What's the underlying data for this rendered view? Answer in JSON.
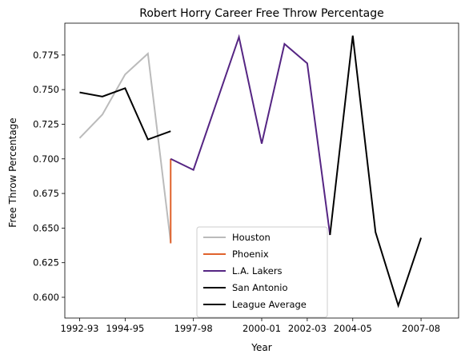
{
  "chart_data": {
    "type": "line",
    "title": "Robert Horry Career Free Throw Percentage",
    "xlabel": "Year",
    "ylabel": "Free Throw Percentage",
    "x_tick_labels": [
      "1992-93",
      "1994-95",
      "1997-98",
      "2000-01",
      "2002-03",
      "2004-05",
      "2007-08"
    ],
    "y_tick_labels": [
      "0.600",
      "0.625",
      "0.650",
      "0.675",
      "0.700",
      "0.725",
      "0.750",
      "0.775"
    ],
    "ylim": [
      0.585,
      0.798
    ],
    "legend_position": "lower-center",
    "series": [
      {
        "name": "Houston",
        "color": "#bbbbbb",
        "points": [
          {
            "x": "1992-93",
            "y": 0.715
          },
          {
            "x": "1993-94",
            "y": 0.732
          },
          {
            "x": "1994-95",
            "y": 0.761
          },
          {
            "x": "1995-96",
            "y": 0.776
          },
          {
            "x": "1996-97",
            "y": 0.64
          }
        ]
      },
      {
        "name": "Phoenix",
        "color": "#e0622c",
        "points": [
          {
            "x": "1996-97",
            "y": 0.639
          },
          {
            "x": "1996-97",
            "y": 0.7
          }
        ]
      },
      {
        "name": "L.A. Lakers",
        "color": "#552583",
        "points": [
          {
            "x": "1996-97",
            "y": 0.7
          },
          {
            "x": "1997-98",
            "y": 0.692
          },
          {
            "x": "1999-00",
            "y": 0.788
          },
          {
            "x": "2000-01",
            "y": 0.711
          },
          {
            "x": "2001-02",
            "y": 0.783
          },
          {
            "x": "2002-03",
            "y": 0.769
          },
          {
            "x": "2003-04",
            "y": 0.645
          }
        ]
      },
      {
        "name": "San Antonio",
        "color": "#000000",
        "points": [
          {
            "x": "2003-04",
            "y": 0.645
          },
          {
            "x": "2004-05",
            "y": 0.789
          },
          {
            "x": "2005-06",
            "y": 0.647
          },
          {
            "x": "2006-07",
            "y": 0.594
          },
          {
            "x": "2007-08",
            "y": 0.643
          }
        ]
      },
      {
        "name": "League Average",
        "color": "#000000",
        "points": [
          {
            "x": "1992-93",
            "y": 0.748
          },
          {
            "x": "1993-94",
            "y": 0.745
          },
          {
            "x": "1994-95",
            "y": 0.751
          },
          {
            "x": "1995-96",
            "y": 0.714
          },
          {
            "x": "1996-97",
            "y": 0.72
          }
        ]
      }
    ]
  }
}
